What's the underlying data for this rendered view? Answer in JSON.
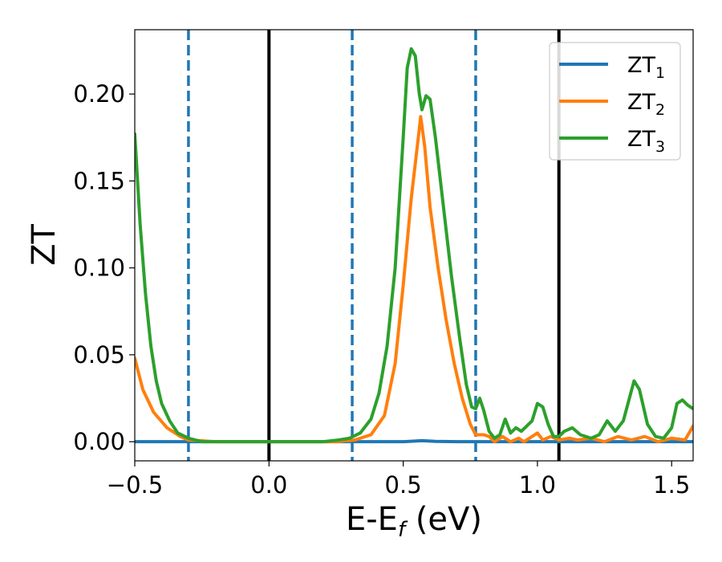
{
  "chart_data": {
    "type": "line",
    "xlabel": {
      "main": "E-E",
      "sub": "f",
      "suffix": " (eV)"
    },
    "ylabel": "ZT",
    "xlim": [
      -0.5,
      1.58
    ],
    "ylim": [
      -0.011,
      0.237
    ],
    "x_ticks": [
      {
        "value": -0.5,
        "label": "−0.5"
      },
      {
        "value": 0.0,
        "label": "0.0"
      },
      {
        "value": 0.5,
        "label": "0.5"
      },
      {
        "value": 1.0,
        "label": "1.0"
      },
      {
        "value": 1.5,
        "label": "1.5"
      }
    ],
    "y_ticks": [
      {
        "value": 0.0,
        "label": "0.00"
      },
      {
        "value": 0.05,
        "label": "0.05"
      },
      {
        "value": 0.1,
        "label": "0.10"
      },
      {
        "value": 0.15,
        "label": "0.15"
      },
      {
        "value": 0.2,
        "label": "0.20"
      }
    ],
    "grid": false,
    "legend": {
      "placement": "top-right"
    },
    "vlines": [
      {
        "x": -0.3,
        "style": "dashed",
        "color": "#1f77b4"
      },
      {
        "x": 0.0,
        "style": "solid",
        "color": "#000000"
      },
      {
        "x": 0.31,
        "style": "dashed",
        "color": "#1f77b4"
      },
      {
        "x": 0.77,
        "style": "dashed",
        "color": "#1f77b4"
      },
      {
        "x": 1.08,
        "style": "solid",
        "color": "#000000"
      }
    ],
    "series": [
      {
        "name": "ZT",
        "sub": "1",
        "color": "#1f77b4",
        "points": [
          [
            -0.5,
            0.0
          ],
          [
            0.5,
            0.0
          ],
          [
            0.57,
            0.0006
          ],
          [
            0.62,
            0.0002
          ],
          [
            0.7,
            0.0
          ],
          [
            1.58,
            0.0
          ]
        ]
      },
      {
        "name": "ZT",
        "sub": "2",
        "color": "#ff7f0e",
        "points": [
          [
            -0.5,
            0.048
          ],
          [
            -0.47,
            0.03
          ],
          [
            -0.43,
            0.017
          ],
          [
            -0.38,
            0.008
          ],
          [
            -0.33,
            0.003
          ],
          [
            -0.3,
            0.001
          ],
          [
            -0.2,
            0.0
          ],
          [
            0.25,
            0.0
          ],
          [
            0.32,
            0.001
          ],
          [
            0.38,
            0.004
          ],
          [
            0.43,
            0.015
          ],
          [
            0.47,
            0.045
          ],
          [
            0.5,
            0.09
          ],
          [
            0.53,
            0.14
          ],
          [
            0.56,
            0.18
          ],
          [
            0.565,
            0.187
          ],
          [
            0.58,
            0.17
          ],
          [
            0.6,
            0.135
          ],
          [
            0.63,
            0.1
          ],
          [
            0.66,
            0.07
          ],
          [
            0.69,
            0.045
          ],
          [
            0.72,
            0.025
          ],
          [
            0.75,
            0.01
          ],
          [
            0.77,
            0.004
          ],
          [
            0.8,
            0.004
          ],
          [
            0.82,
            0.003
          ],
          [
            0.84,
            0.0
          ],
          [
            0.87,
            0.003
          ],
          [
            0.9,
            0.0
          ],
          [
            0.93,
            0.002
          ],
          [
            0.95,
            0.0
          ],
          [
            0.98,
            0.003
          ],
          [
            1.0,
            0.005
          ],
          [
            1.02,
            0.001
          ],
          [
            1.05,
            0.003
          ],
          [
            1.08,
            0.001
          ],
          [
            1.12,
            0.002
          ],
          [
            1.15,
            0.001
          ],
          [
            1.2,
            0.002
          ],
          [
            1.25,
            0.0
          ],
          [
            1.3,
            0.003
          ],
          [
            1.35,
            0.001
          ],
          [
            1.4,
            0.003
          ],
          [
            1.45,
            0.0
          ],
          [
            1.5,
            0.002
          ],
          [
            1.55,
            0.001
          ],
          [
            1.58,
            0.009
          ]
        ]
      },
      {
        "name": "ZT",
        "sub": "3",
        "color": "#2ca02c",
        "points": [
          [
            -0.5,
            0.177
          ],
          [
            -0.48,
            0.125
          ],
          [
            -0.46,
            0.085
          ],
          [
            -0.44,
            0.055
          ],
          [
            -0.42,
            0.035
          ],
          [
            -0.4,
            0.022
          ],
          [
            -0.37,
            0.012
          ],
          [
            -0.34,
            0.005
          ],
          [
            -0.3,
            0.002
          ],
          [
            -0.25,
            0.0
          ],
          [
            0.2,
            0.0
          ],
          [
            0.26,
            0.001
          ],
          [
            0.3,
            0.002
          ],
          [
            0.34,
            0.005
          ],
          [
            0.38,
            0.013
          ],
          [
            0.41,
            0.028
          ],
          [
            0.44,
            0.055
          ],
          [
            0.47,
            0.1
          ],
          [
            0.5,
            0.175
          ],
          [
            0.515,
            0.215
          ],
          [
            0.53,
            0.226
          ],
          [
            0.545,
            0.222
          ],
          [
            0.56,
            0.2
          ],
          [
            0.57,
            0.191
          ],
          [
            0.585,
            0.199
          ],
          [
            0.6,
            0.197
          ],
          [
            0.62,
            0.175
          ],
          [
            0.65,
            0.135
          ],
          [
            0.68,
            0.095
          ],
          [
            0.71,
            0.06
          ],
          [
            0.735,
            0.033
          ],
          [
            0.755,
            0.02
          ],
          [
            0.77,
            0.019
          ],
          [
            0.785,
            0.025
          ],
          [
            0.8,
            0.018
          ],
          [
            0.82,
            0.006
          ],
          [
            0.84,
            0.002
          ],
          [
            0.86,
            0.004
          ],
          [
            0.88,
            0.013
          ],
          [
            0.9,
            0.005
          ],
          [
            0.92,
            0.008
          ],
          [
            0.94,
            0.006
          ],
          [
            0.96,
            0.009
          ],
          [
            0.98,
            0.012
          ],
          [
            1.0,
            0.022
          ],
          [
            1.02,
            0.02
          ],
          [
            1.04,
            0.01
          ],
          [
            1.06,
            0.003
          ],
          [
            1.08,
            0.003
          ],
          [
            1.1,
            0.006
          ],
          [
            1.13,
            0.008
          ],
          [
            1.16,
            0.004
          ],
          [
            1.2,
            0.002
          ],
          [
            1.23,
            0.004
          ],
          [
            1.26,
            0.012
          ],
          [
            1.29,
            0.006
          ],
          [
            1.32,
            0.012
          ],
          [
            1.36,
            0.035
          ],
          [
            1.38,
            0.03
          ],
          [
            1.41,
            0.01
          ],
          [
            1.44,
            0.003
          ],
          [
            1.47,
            0.002
          ],
          [
            1.5,
            0.008
          ],
          [
            1.52,
            0.022
          ],
          [
            1.54,
            0.024
          ],
          [
            1.56,
            0.021
          ],
          [
            1.58,
            0.019
          ]
        ]
      }
    ]
  }
}
